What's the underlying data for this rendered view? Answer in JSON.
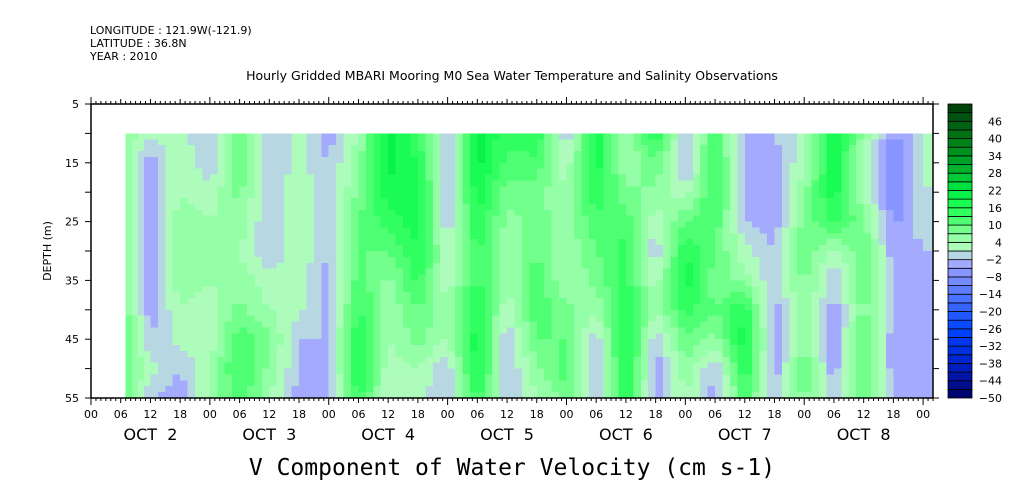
{
  "chart_data": {
    "type": "heatmap",
    "header": [
      "LONGITUDE : 121.9W(-121.9)",
      "LATITUDE : 36.8N",
      "YEAR : 2010"
    ],
    "title": "Hourly Gridded MBARI Mooring M0 Sea Water Temperature and Salinity Observations",
    "ylabel": "DEPTH (m)",
    "variable_label": "V Component of Water Velocity (cm s-1)",
    "xlim_hours_from_oct2_00": [
      0,
      170
    ],
    "ylim_depth": [
      55,
      5
    ],
    "y_ticks": [
      5,
      15,
      25,
      35,
      45,
      55
    ],
    "x_tick_labels": [
      "00",
      "06",
      "12",
      "18",
      "00",
      "06",
      "12",
      "18",
      "00",
      "06",
      "12",
      "18",
      "00",
      "06",
      "12",
      "18",
      "00",
      "06",
      "12",
      "18",
      "00",
      "06",
      "12",
      "18",
      "00",
      "06",
      "12",
      "18",
      "00"
    ],
    "day_labels": [
      "OCT  2",
      "OCT  3",
      "OCT  4",
      "OCT  5",
      "OCT  6",
      "OCT  7",
      "OCT  8"
    ],
    "colorbar": {
      "levels_min": -50,
      "levels_max": 52,
      "levels_step": 3,
      "tick_labels": [
        46,
        40,
        34,
        28,
        22,
        16,
        10,
        4,
        -2,
        -8,
        -14,
        -20,
        -26,
        -32,
        -38,
        -44,
        -50
      ],
      "anchors": [
        [
          -50,
          "#000066"
        ],
        [
          -38,
          "#0022cc"
        ],
        [
          -26,
          "#0044ff"
        ],
        [
          -14,
          "#5577ff"
        ],
        [
          -6,
          "#8c98ff"
        ],
        [
          -2,
          "#b2b6ff"
        ],
        [
          1,
          "#bcf8c6"
        ],
        [
          4,
          "#a0ffb0"
        ],
        [
          7,
          "#88ff9c"
        ],
        [
          10,
          "#5cff7c"
        ],
        [
          16,
          "#22ff58"
        ],
        [
          22,
          "#00ee44"
        ],
        [
          28,
          "#00bb33"
        ],
        [
          34,
          "#009922"
        ],
        [
          40,
          "#007a16"
        ],
        [
          46,
          "#005a10"
        ],
        [
          52,
          "#003a08"
        ]
      ]
    },
    "depths": [
      10,
      15,
      20,
      25,
      30,
      35,
      40,
      45,
      50,
      55
    ],
    "hours": [
      7,
      12,
      18,
      24,
      30,
      36,
      42,
      48,
      54,
      60,
      66,
      72,
      78,
      84,
      90,
      96,
      102,
      108,
      114,
      120,
      126,
      132,
      138,
      144,
      150,
      156,
      162,
      170
    ],
    "v_by_hour": [
      [
        6,
        6,
        6,
        6,
        6,
        8,
        8,
        10,
        10,
        10
      ],
      [
        2,
        -4,
        -4,
        -4,
        -4,
        -4,
        -4,
        -2,
        2,
        -2
      ],
      [
        2,
        4,
        4,
        6,
        6,
        6,
        4,
        2,
        -2,
        -4
      ],
      [
        -2,
        -2,
        2,
        4,
        4,
        4,
        2,
        2,
        4,
        4
      ],
      [
        10,
        10,
        8,
        6,
        4,
        6,
        8,
        12,
        14,
        12
      ],
      [
        -2,
        -2,
        -2,
        -2,
        -2,
        2,
        4,
        8,
        6,
        4
      ],
      [
        2,
        2,
        4,
        4,
        4,
        2,
        2,
        -2,
        -2,
        -4
      ],
      [
        -4,
        -2,
        -2,
        -2,
        -2,
        -4,
        -4,
        -2,
        -4,
        -4
      ],
      [
        4,
        6,
        8,
        10,
        10,
        12,
        14,
        16,
        18,
        14
      ],
      [
        20,
        20,
        18,
        14,
        10,
        6,
        4,
        4,
        2,
        2
      ],
      [
        14,
        16,
        18,
        18,
        16,
        14,
        10,
        8,
        4,
        2
      ],
      [
        -2,
        -2,
        -2,
        -2,
        2,
        2,
        4,
        4,
        -2,
        -2
      ],
      [
        20,
        20,
        18,
        16,
        14,
        14,
        16,
        18,
        18,
        14
      ],
      [
        14,
        12,
        8,
        6,
        4,
        4,
        2,
        -2,
        -2,
        -2
      ],
      [
        16,
        12,
        8,
        8,
        10,
        12,
        12,
        10,
        6,
        4
      ],
      [
        -2,
        2,
        4,
        6,
        4,
        4,
        8,
        10,
        12,
        8
      ],
      [
        18,
        18,
        16,
        12,
        10,
        8,
        4,
        -2,
        -4,
        -2
      ],
      [
        4,
        4,
        8,
        12,
        14,
        14,
        16,
        18,
        18,
        16
      ],
      [
        16,
        10,
        6,
        2,
        -2,
        2,
        4,
        -2,
        -4,
        -4
      ],
      [
        -2,
        -4,
        2,
        10,
        16,
        18,
        14,
        10,
        6,
        4
      ],
      [
        12,
        14,
        14,
        12,
        10,
        8,
        10,
        6,
        -2,
        -4
      ],
      [
        -4,
        -4,
        -4,
        -2,
        2,
        6,
        16,
        18,
        16,
        12
      ],
      [
        -2,
        -4,
        -4,
        -4,
        -2,
        -2,
        -4,
        -4,
        -4,
        -2
      ],
      [
        2,
        4,
        6,
        8,
        10,
        8,
        8,
        6,
        10,
        8
      ],
      [
        18,
        18,
        18,
        14,
        2,
        -2,
        -4,
        -4,
        -4,
        -2
      ],
      [
        6,
        4,
        4,
        8,
        10,
        10,
        8,
        10,
        12,
        10
      ],
      [
        -6,
        -8,
        -8,
        -6,
        -4,
        -2,
        -2,
        -4,
        -4,
        -2
      ],
      [
        4,
        4,
        2,
        2,
        -2,
        -4,
        -4,
        -4,
        -4,
        -2
      ]
    ]
  }
}
